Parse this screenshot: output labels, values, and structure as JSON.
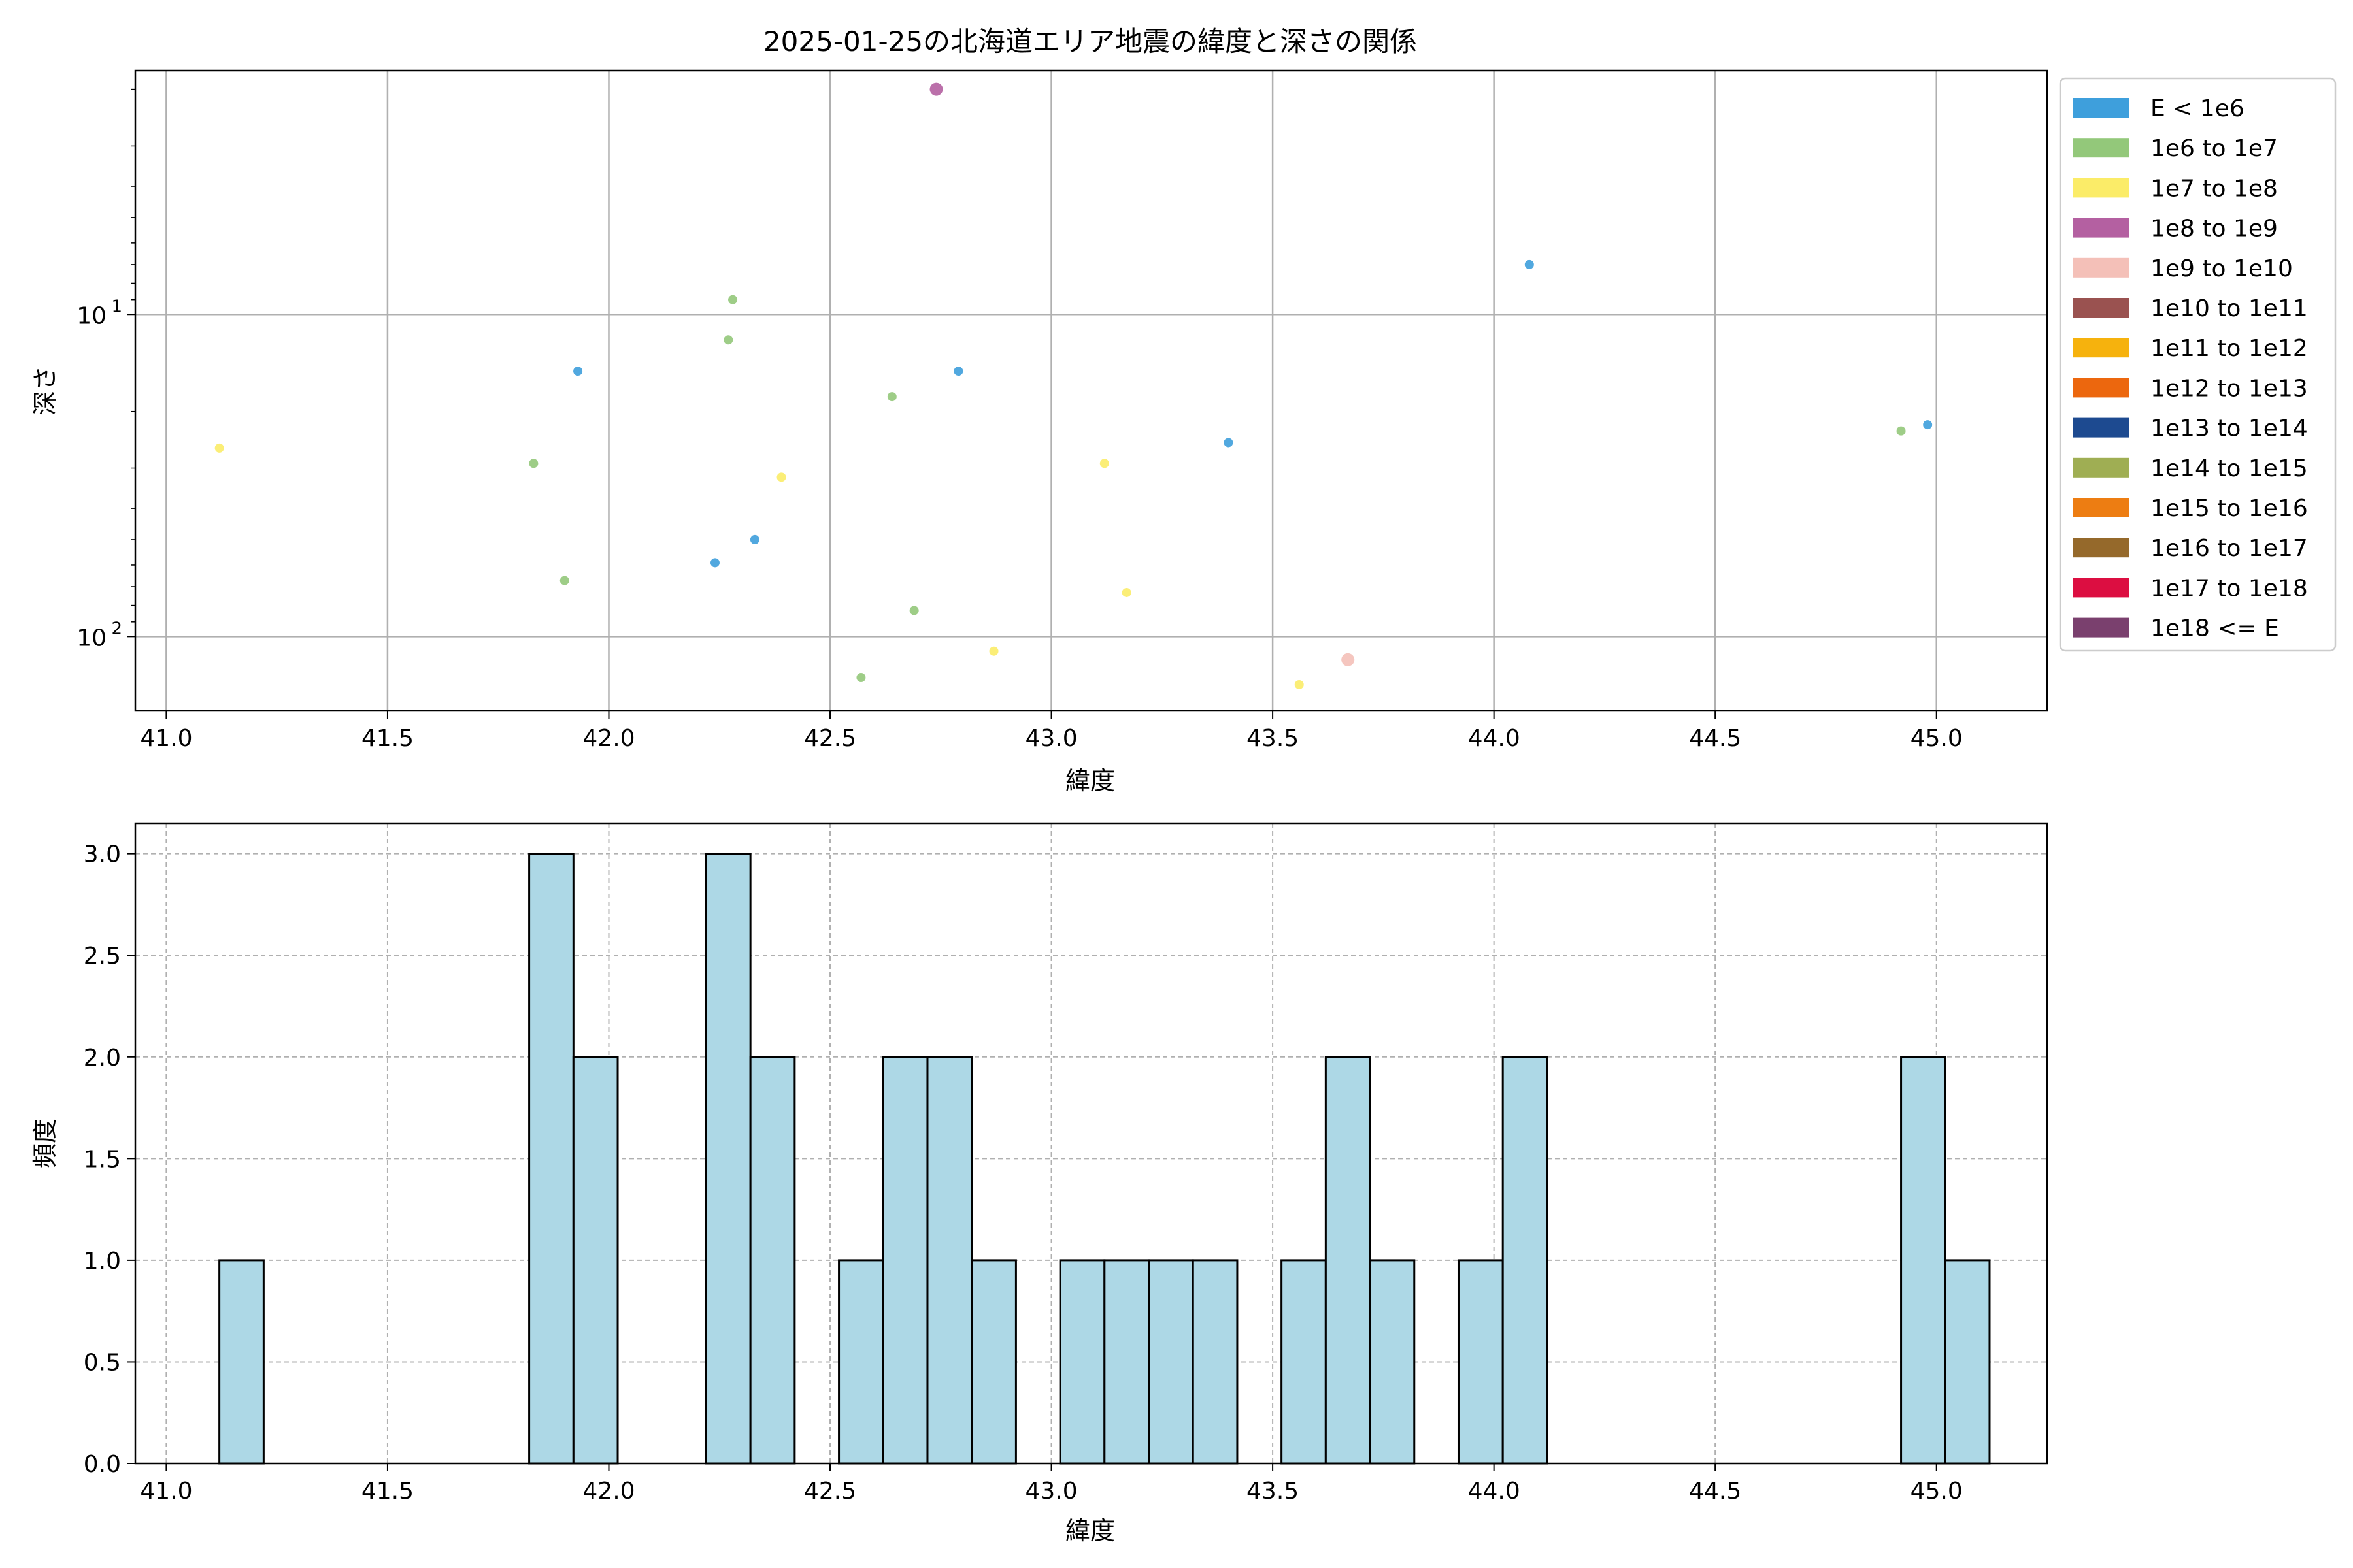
{
  "chart_data": [
    {
      "type": "scatter",
      "title": "2025-01-25の北海道エリア地震の緯度と深さの関係",
      "xlabel": "緯度",
      "ylabel": "深さ",
      "x_ticks": [
        "41.0",
        "41.5",
        "42.0",
        "42.5",
        "43.0",
        "43.5",
        "44.0",
        "44.5",
        "45.0"
      ],
      "y_scale": "log",
      "y_inverted": true,
      "y_ticks": [
        {
          "value": 10,
          "mantissa": "10",
          "exponent": "1"
        },
        {
          "value": 100,
          "mantissa": "10",
          "exponent": "2"
        }
      ],
      "xlim": [
        40.93,
        45.25
      ],
      "ylim": [
        170,
        1.75
      ],
      "grid": true,
      "legend_position": "outside-right",
      "legend": [
        {
          "label": "E < 1e6",
          "color": "#3e9fdc"
        },
        {
          "label": "1e6 to 1e7",
          "color": "#93c87a"
        },
        {
          "label": "1e7 to 1e8",
          "color": "#fbec68"
        },
        {
          "label": "1e8 to 1e9",
          "color": "#b460a1"
        },
        {
          "label": "1e9 to 1e10",
          "color": "#f4c0b8"
        },
        {
          "label": "1e10 to 1e11",
          "color": "#9a5250"
        },
        {
          "label": "1e11 to 1e12",
          "color": "#f6b20d"
        },
        {
          "label": "1e12 to 1e13",
          "color": "#ec670e"
        },
        {
          "label": "1e13 to 1e14",
          "color": "#1d4a90"
        },
        {
          "label": "1e14 to 1e15",
          "color": "#9fae53"
        },
        {
          "label": "1e15 to 1e16",
          "color": "#ed7d12"
        },
        {
          "label": "1e16 to 1e17",
          "color": "#95692b"
        },
        {
          "label": "1e17 to 1e18",
          "color": "#dc0e41"
        },
        {
          "label": "1e18 <= E",
          "color": "#7a406e"
        }
      ],
      "points": [
        {
          "x": 41.12,
          "y": 26,
          "class": "1e7 to 1e8",
          "size": "small"
        },
        {
          "x": 41.83,
          "y": 29,
          "class": "1e6 to 1e7",
          "size": "small"
        },
        {
          "x": 41.9,
          "y": 67,
          "class": "1e6 to 1e7",
          "size": "small"
        },
        {
          "x": 41.93,
          "y": 15,
          "class": "E < 1e6",
          "size": "small"
        },
        {
          "x": 42.24,
          "y": 59,
          "class": "E < 1e6",
          "size": "small"
        },
        {
          "x": 42.27,
          "y": 12,
          "class": "1e6 to 1e7",
          "size": "small"
        },
        {
          "x": 42.28,
          "y": 9,
          "class": "1e6 to 1e7",
          "size": "small"
        },
        {
          "x": 42.33,
          "y": 50,
          "class": "E < 1e6",
          "size": "small"
        },
        {
          "x": 42.39,
          "y": 32,
          "class": "1e7 to 1e8",
          "size": "small"
        },
        {
          "x": 42.57,
          "y": 134,
          "class": "1e6 to 1e7",
          "size": "small"
        },
        {
          "x": 42.64,
          "y": 18,
          "class": "1e6 to 1e7",
          "size": "small"
        },
        {
          "x": 42.69,
          "y": 83,
          "class": "1e6 to 1e7",
          "size": "small"
        },
        {
          "x": 42.74,
          "y": 2,
          "class": "1e8 to 1e9",
          "size": "large"
        },
        {
          "x": 42.79,
          "y": 15,
          "class": "E < 1e6",
          "size": "small"
        },
        {
          "x": 42.87,
          "y": 111,
          "class": "1e7 to 1e8",
          "size": "small"
        },
        {
          "x": 43.12,
          "y": 29,
          "class": "1e7 to 1e8",
          "size": "small"
        },
        {
          "x": 43.17,
          "y": 73,
          "class": "1e7 to 1e8",
          "size": "small"
        },
        {
          "x": 43.4,
          "y": 25,
          "class": "E < 1e6",
          "size": "small"
        },
        {
          "x": 43.56,
          "y": 141,
          "class": "1e7 to 1e8",
          "size": "small"
        },
        {
          "x": 43.67,
          "y": 118,
          "class": "1e9 to 1e10",
          "size": "large"
        },
        {
          "x": 44.08,
          "y": 7,
          "class": "E < 1e6",
          "size": "small"
        },
        {
          "x": 44.92,
          "y": 23,
          "class": "1e6 to 1e7",
          "size": "small"
        },
        {
          "x": 44.98,
          "y": 22,
          "class": "E < 1e6",
          "size": "small"
        }
      ]
    },
    {
      "type": "bar",
      "title": "",
      "xlabel": "緯度",
      "ylabel": "頻度",
      "x_ticks": [
        "41.0",
        "41.5",
        "42.0",
        "42.5",
        "43.0",
        "43.5",
        "44.0",
        "44.5",
        "45.0"
      ],
      "y_ticks": [
        "0.0",
        "0.5",
        "1.0",
        "1.5",
        "2.0",
        "2.5",
        "3.0"
      ],
      "xlim": [
        40.93,
        45.25
      ],
      "ylim": [
        0,
        3.15
      ],
      "grid": true,
      "bar_color": "#add8e6",
      "edge_color": "#000000",
      "bins": [
        {
          "start": 41.12,
          "end": 41.22,
          "count": 1
        },
        {
          "start": 41.82,
          "end": 41.92,
          "count": 3
        },
        {
          "start": 41.92,
          "end": 42.02,
          "count": 2
        },
        {
          "start": 42.22,
          "end": 42.32,
          "count": 3
        },
        {
          "start": 42.32,
          "end": 42.42,
          "count": 2
        },
        {
          "start": 42.52,
          "end": 42.62,
          "count": 1
        },
        {
          "start": 42.62,
          "end": 42.72,
          "count": 2
        },
        {
          "start": 42.72,
          "end": 42.82,
          "count": 2
        },
        {
          "start": 42.82,
          "end": 42.92,
          "count": 1
        },
        {
          "start": 43.02,
          "end": 43.12,
          "count": 1
        },
        {
          "start": 43.12,
          "end": 43.22,
          "count": 1
        },
        {
          "start": 43.22,
          "end": 43.32,
          "count": 1
        },
        {
          "start": 43.32,
          "end": 43.42,
          "count": 1
        },
        {
          "start": 43.52,
          "end": 43.62,
          "count": 1
        },
        {
          "start": 43.62,
          "end": 43.72,
          "count": 2
        },
        {
          "start": 43.72,
          "end": 43.82,
          "count": 1
        },
        {
          "start": 43.92,
          "end": 44.02,
          "count": 1
        },
        {
          "start": 44.02,
          "end": 44.12,
          "count": 2
        },
        {
          "start": 44.92,
          "end": 45.02,
          "count": 2
        },
        {
          "start": 45.02,
          "end": 45.12,
          "count": 1
        }
      ]
    }
  ]
}
